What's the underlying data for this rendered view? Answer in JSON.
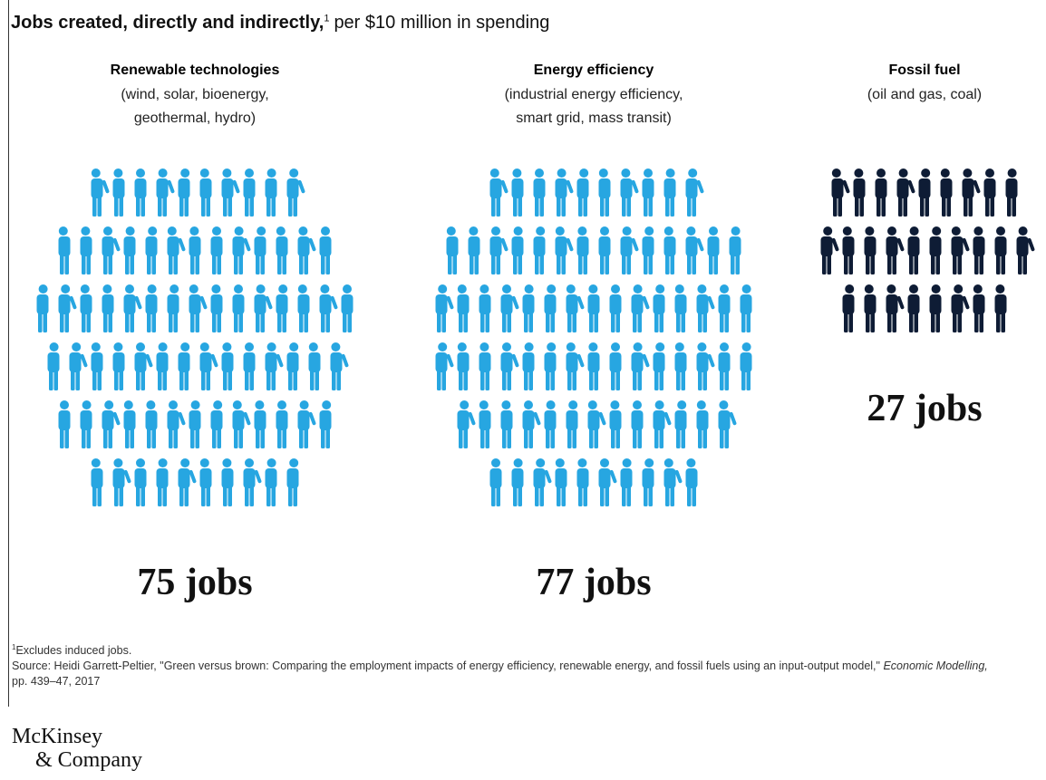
{
  "chart_data": {
    "type": "pictograph",
    "subtitle": {
      "bold": "Jobs created, directly and indirectly,",
      "sup": "1",
      "rest": "per $10 million in spending"
    },
    "categories": [
      "Renewable technologies",
      "Energy efficiency",
      "Fossil fuel"
    ],
    "sublabels": [
      [
        "(wind, solar, bioenergy,",
        "geothermal, hydro)"
      ],
      [
        "(industrial energy efficiency,",
        "smart grid, mass transit)"
      ],
      [
        "(oil and gas, coal)"
      ]
    ],
    "values": [
      75,
      77,
      27
    ],
    "value_labels": [
      "75 jobs",
      "77 jobs",
      "27 jobs"
    ],
    "colors": [
      "#27a6e1",
      "#27a6e1",
      "#0e1c35"
    ]
  },
  "footnote": {
    "marker": "1",
    "text": "Excludes induced jobs."
  },
  "source": {
    "text": "Source: Heidi Garrett-Peltier, \"Green versus brown: Comparing the employment impacts of energy efficiency, renewable energy, and fossil fuels using an input-output model,\"",
    "journal": "Economic Modelling,",
    "pages": "pp. 439–47, 2017"
  },
  "logo": [
    "McKinsey",
    "& Company"
  ]
}
